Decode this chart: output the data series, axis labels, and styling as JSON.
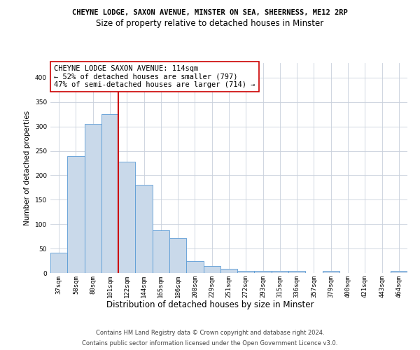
{
  "title_line1": "CHEYNE LODGE, SAXON AVENUE, MINSTER ON SEA, SHEERNESS, ME12 2RP",
  "title_line2": "Size of property relative to detached houses in Minster",
  "xlabel": "Distribution of detached houses by size in Minster",
  "ylabel": "Number of detached properties",
  "footer_line1": "Contains HM Land Registry data © Crown copyright and database right 2024.",
  "footer_line2": "Contains public sector information licensed under the Open Government Licence v3.0.",
  "bin_labels": [
    "37sqm",
    "58sqm",
    "80sqm",
    "101sqm",
    "122sqm",
    "144sqm",
    "165sqm",
    "186sqm",
    "208sqm",
    "229sqm",
    "251sqm",
    "272sqm",
    "293sqm",
    "315sqm",
    "336sqm",
    "357sqm",
    "379sqm",
    "400sqm",
    "421sqm",
    "443sqm",
    "464sqm"
  ],
  "bar_values": [
    42,
    240,
    305,
    325,
    228,
    180,
    88,
    72,
    25,
    14,
    9,
    4,
    4,
    4,
    4,
    0,
    4,
    0,
    0,
    0,
    4
  ],
  "bar_color": "#c9d9ea",
  "bar_edge_color": "#5b9bd5",
  "vline_x_index": 3.5,
  "vline_color": "#cc0000",
  "annotation_box_text": "CHEYNE LODGE SAXON AVENUE: 114sqm\n← 52% of detached houses are smaller (797)\n47% of semi-detached houses are larger (714) →",
  "ylim": [
    0,
    430
  ],
  "yticks": [
    0,
    50,
    100,
    150,
    200,
    250,
    300,
    350,
    400
  ],
  "background_color": "#ffffff",
  "grid_color": "#c8d0dc",
  "title1_fontsize": 7.5,
  "title2_fontsize": 8.5,
  "ylabel_fontsize": 7.5,
  "xlabel_fontsize": 8.5,
  "tick_fontsize": 6.5,
  "footer_fontsize": 6.0,
  "annot_fontsize": 7.5
}
